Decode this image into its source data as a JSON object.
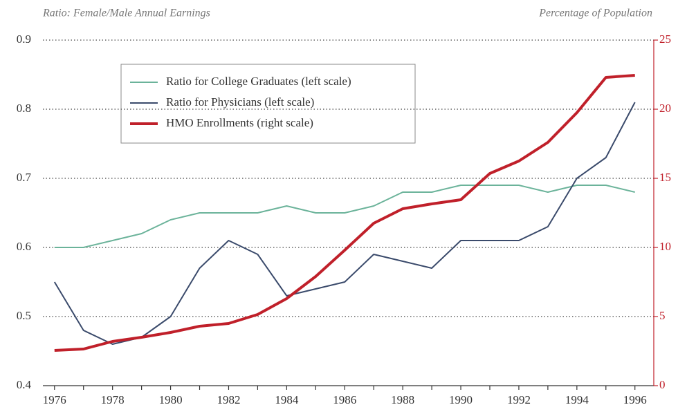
{
  "chart_data": {
    "type": "line",
    "y_axis_title": "Ratio: Female/Male Annual Earnings",
    "y2_axis_title": "Percentage of Population",
    "x": [
      1976,
      1977,
      1978,
      1979,
      1980,
      1981,
      1982,
      1983,
      1984,
      1985,
      1986,
      1987,
      1988,
      1989,
      1990,
      1991,
      1992,
      1993,
      1994,
      1995,
      1996
    ],
    "xlim": [
      1975.6,
      1996.65
    ],
    "xticks": [
      1976,
      1978,
      1980,
      1982,
      1984,
      1986,
      1988,
      1990,
      1992,
      1994,
      1996
    ],
    "ylim": [
      0.4,
      0.9
    ],
    "yticks": [
      0.4,
      0.5,
      0.6,
      0.7,
      0.8,
      0.9
    ],
    "y2lim": [
      0,
      25
    ],
    "y2ticks": [
      0,
      5,
      10,
      15,
      20,
      25
    ],
    "y2_color": "#c0202a",
    "grid": true,
    "legend": "upper left",
    "series": [
      {
        "name": "Ratio for College Graduates (left scale)",
        "color": "#6bb39a",
        "values": [
          0.6,
          0.6,
          0.61,
          0.62,
          0.64,
          0.65,
          0.65,
          0.65,
          0.66,
          0.65,
          0.65,
          0.66,
          0.68,
          0.68,
          0.69,
          0.69,
          0.69,
          0.68,
          0.69,
          0.69,
          0.68
        ]
      },
      {
        "name": "Ratio for Physicians (left scale)",
        "color": "#3a4a6b",
        "values": [
          0.55,
          0.48,
          0.46,
          0.47,
          0.5,
          0.57,
          0.61,
          0.59,
          0.53,
          0.54,
          0.55,
          0.59,
          0.58,
          0.57,
          0.61,
          0.61,
          0.61,
          0.63,
          0.7,
          0.73,
          0.81
        ]
      },
      {
        "name": "HMO Enrollments (right scale)",
        "color": "#c0202a",
        "axis": "y2",
        "values": [
          2.55,
          2.65,
          3.2,
          3.5,
          3.85,
          4.3,
          4.5,
          5.15,
          6.3,
          7.9,
          9.8,
          11.75,
          12.8,
          13.15,
          13.45,
          15.35,
          16.25,
          17.6,
          19.75,
          22.3,
          22.45
        ]
      }
    ]
  }
}
